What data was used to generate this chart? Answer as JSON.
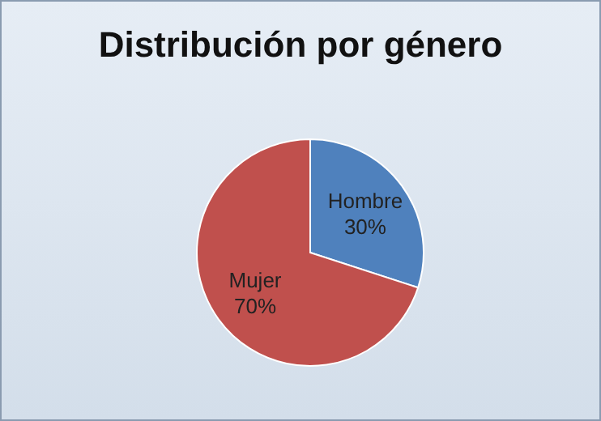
{
  "chart_data": {
    "type": "pie",
    "title": "Distribución por género",
    "categories": [
      "Hombre",
      "Mujer"
    ],
    "values": [
      30,
      70
    ],
    "value_labels": [
      "30%",
      "70%"
    ],
    "colors": [
      "#4f81bd",
      "#c0504d"
    ]
  }
}
